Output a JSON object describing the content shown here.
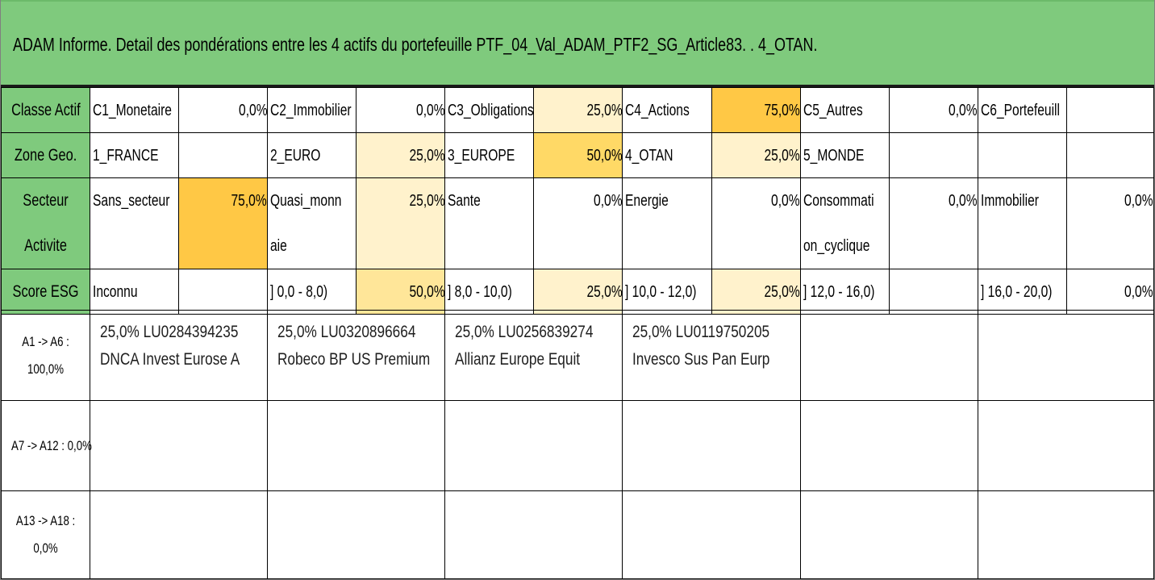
{
  "title": "ADAM Informe. Detail des pondérations entre les 4 actifs du portefeuille PTF_04_Val_ADAM_PTF2_SG_Article83. . 4_OTAN.",
  "classe_actif": {
    "label": "Classe Actif",
    "items": [
      {
        "name": "C1_Monetaire",
        "pct": "0,0%"
      },
      {
        "name": "C2_Immobilier",
        "pct": "0,0%"
      },
      {
        "name": "C3_Obligations",
        "pct": "25,0%"
      },
      {
        "name": "C4_Actions",
        "pct": "75,0%"
      },
      {
        "name": "C5_Autres",
        "pct": "0,0%"
      },
      {
        "name": "C6_Portefeuill",
        "pct": ""
      }
    ]
  },
  "zone_geo": {
    "label": "Zone Geo.",
    "items": [
      {
        "name": "1_FRANCE",
        "pct": ""
      },
      {
        "name": "2_EURO",
        "pct": "25,0%"
      },
      {
        "name": "3_EUROPE",
        "pct": "50,0%"
      },
      {
        "name": "4_OTAN",
        "pct": "25,0%"
      },
      {
        "name": "5_MONDE",
        "pct": ""
      },
      {
        "name": "",
        "pct": ""
      }
    ]
  },
  "secteur": {
    "label_line1": "Secteur",
    "label_line2": "Activite",
    "items": [
      {
        "name": "Sans_secteur",
        "name2": "",
        "pct": "75,0%"
      },
      {
        "name": "Quasi_monn",
        "name2": "aie",
        "pct": "25,0%"
      },
      {
        "name": "Sante",
        "name2": "",
        "pct": "0,0%"
      },
      {
        "name": "Energie",
        "name2": "",
        "pct": "0,0%"
      },
      {
        "name": "Consommati",
        "name2": "on_cyclique",
        "pct": "0,0%"
      },
      {
        "name": "Immobilier",
        "name2": "",
        "pct": "0,0%"
      }
    ]
  },
  "score_esg": {
    "label": "Score ESG",
    "items": [
      {
        "name": "Inconnu",
        "pct": ""
      },
      {
        "name": "] 0,0 - 8,0)",
        "pct": "50,0%"
      },
      {
        "name": "] 8,0 - 10,0)",
        "pct": "25,0%"
      },
      {
        "name": "] 10,0 - 12,0)",
        "pct": "25,0%"
      },
      {
        "name": "] 12,0 - 16,0)",
        "pct": ""
      },
      {
        "name": "] 16,0 - 20,0)",
        "pct": "0,0%"
      }
    ]
  },
  "assets": {
    "groups": [
      {
        "label1": "A1 -> A6 :",
        "label2": "100,0%"
      },
      {
        "label1": "A7 -> A12 : 0,0%",
        "label2": ""
      },
      {
        "label1": "A13 -> A18 :",
        "label2": "0,0%"
      }
    ],
    "items": [
      {
        "line1": "25,0% LU0284394235",
        "line2": "DNCA Invest Eurose A"
      },
      {
        "line1": "25,0% LU0320896664",
        "line2": "Robeco BP US Premium"
      },
      {
        "line1": "25,0% LU0256839274",
        "line2": "Allianz Europe Equit"
      },
      {
        "line1": "25,0% LU0119750205",
        "line2": "Invesco Sus Pan Eurp"
      }
    ]
  },
  "colors": {
    "header_green": "#7fca7d",
    "pct_light": "#fff2cc",
    "pct_mid": "#ffe699",
    "pct_strong": "#ffd966",
    "pct_deep": "#ffc845"
  }
}
